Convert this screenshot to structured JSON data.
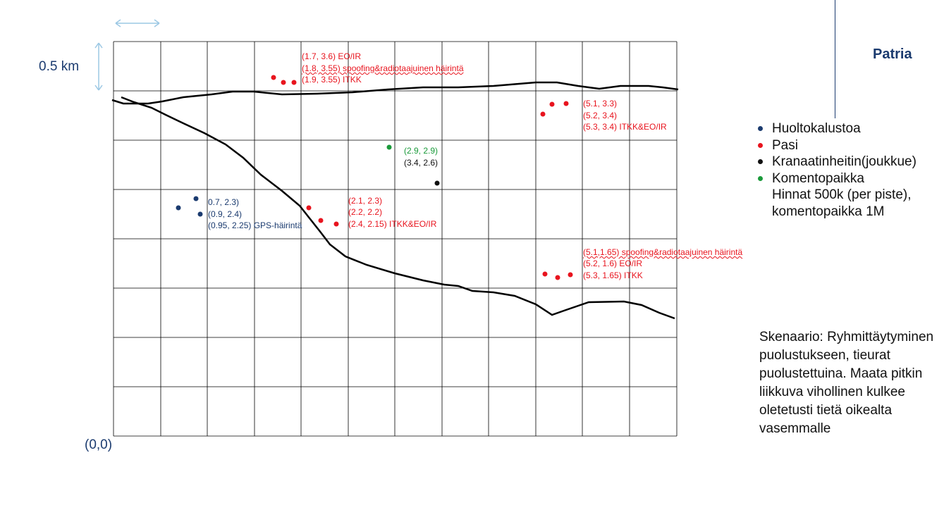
{
  "scale_label": "0.5 km",
  "origin_label": "(0,0)",
  "logo_text": "Patria",
  "colors": {
    "red": "#e8141e",
    "navy": "#1b3b6f",
    "green": "#1a9a3a",
    "black": "#111111",
    "arrow": "#9cc8e4"
  },
  "labels": {
    "north_group": [
      "(1.7, 3.6) EO/IR",
      "(1.8, 3.55) spoofing&radiotaajuinen häirintä",
      "(1.9, 3.55) ITKK"
    ],
    "northeast_group": [
      "(5.1, 3.3)",
      "(5.2, 3.4)",
      "(5.3, 3.4) ITKK&EO/IR"
    ],
    "command": "(2.9, 2.9)",
    "mortar": "(3.4, 2.6)",
    "maintenance": [
      "0.7, 2.3)",
      "(0.9, 2.4)",
      "(0.95, 2.25) GPS-häirintä"
    ],
    "center_group": [
      "(2.1, 2.3)",
      "(2.2, 2.2)",
      "(2.4, 2.15) ITKK&EO/IR"
    ],
    "east_group": [
      "(5.1,1.65) spoofing&radiotaajuinen häirintä",
      "(5.2, 1.6) EO/IR",
      "(5.3, 1.65) ITKK"
    ]
  },
  "legend": {
    "items": [
      {
        "label": "Huoltokalustoa",
        "color": "#1b3b6f"
      },
      {
        "label": "Pasi",
        "color": "#e8141e"
      },
      {
        "label": "Kranaatinheitin(joukkue)",
        "color": "#111111"
      },
      {
        "label": "Komentopaikka",
        "color": "#1a9a3a"
      }
    ],
    "note_line1": "Hinnat 500k (per piste),",
    "note_line2": "komentopaikka 1M"
  },
  "scenario": "Skenaario: Ryhmittäytyminen puolustukseen, tieurat puolustettuina. Maata pitkin liikkuva vihollinen kulkee oletetusti tietä oikealta vasemmalle"
}
